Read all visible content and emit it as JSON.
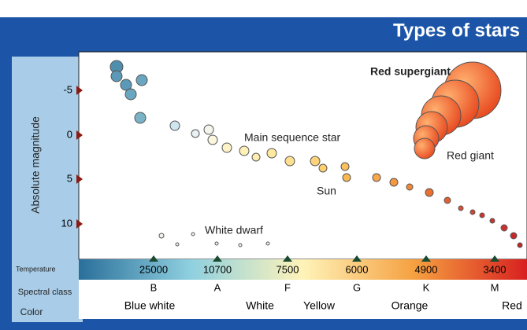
{
  "title": "Types of stars",
  "y_axis": {
    "label": "Absolute magnitude",
    "ticks": [
      "-5",
      "0",
      "5",
      "10"
    ]
  },
  "annotations": {
    "red_supergiant": "Red supergiant",
    "main_sequence": "Main sequence star",
    "red_giant": "Red giant",
    "sun": "Sun",
    "white_dwarf": "White dwarf"
  },
  "temperature": {
    "label": "Temperature",
    "values": [
      "25000",
      "10700",
      "7500",
      "6000",
      "4900",
      "3400"
    ]
  },
  "spectral_class": {
    "label": "Spectral class",
    "classes": [
      "B",
      "A",
      "F",
      "G",
      "K",
      "M"
    ]
  },
  "color": {
    "label": "Color",
    "names": [
      "Blue white",
      "White",
      "Yellow",
      "Orange",
      "Red"
    ]
  }
}
